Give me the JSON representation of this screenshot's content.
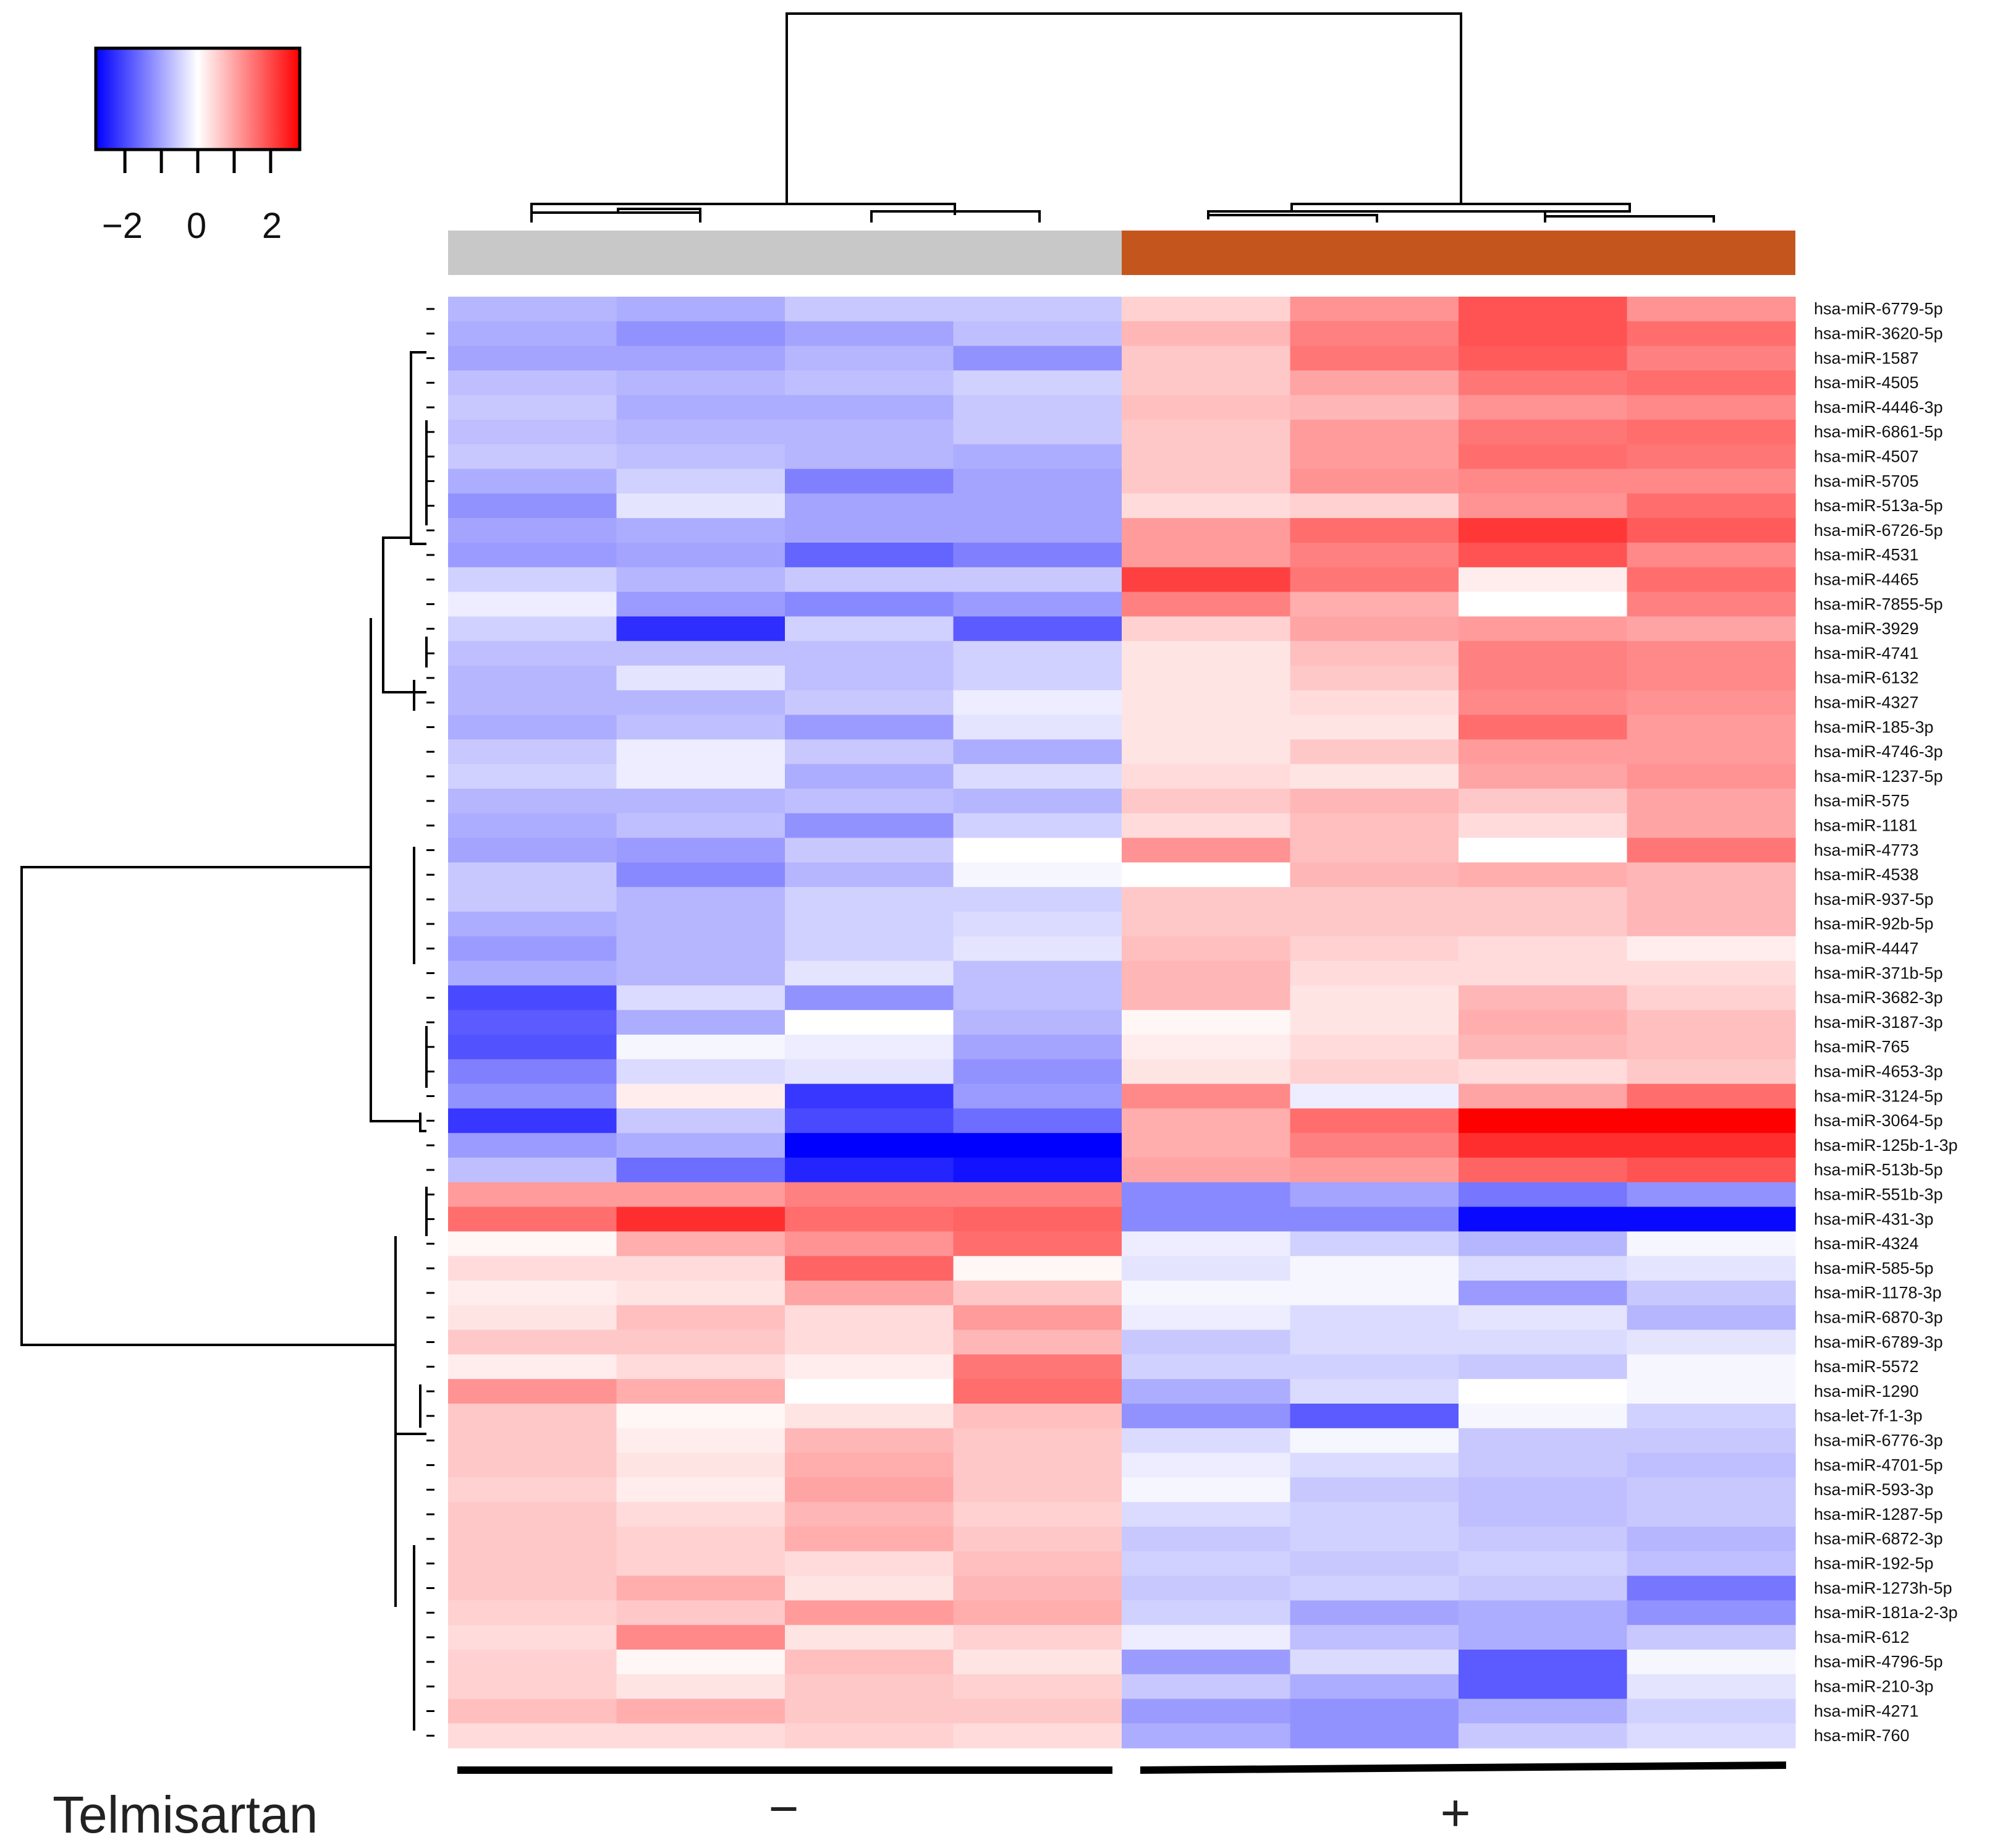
{
  "chart_data": {
    "type": "heatmap",
    "color_scale": {
      "low": "#0000ff",
      "mid": "#ffffff",
      "high": "#ff0000",
      "range": [
        -2.8,
        2.8
      ]
    },
    "colorbar": {
      "ticks": [
        -2,
        -1,
        0,
        1,
        2
      ],
      "tick_labels": [
        "−2",
        "0",
        "2"
      ]
    },
    "groups": [
      {
        "name": "−",
        "color": "#c8c8c8",
        "columns": 4
      },
      {
        "name": "+",
        "color": "#c4561d",
        "columns": 4
      }
    ],
    "treatment_label": "Telmisartan",
    "rows": [
      "hsa-miR-6779-5p",
      "hsa-miR-3620-5p",
      "hsa-miR-1587",
      "hsa-miR-4505",
      "hsa-miR-4446-3p",
      "hsa-miR-6861-5p",
      "hsa-miR-4507",
      "hsa-miR-5705",
      "hsa-miR-513a-5p",
      "hsa-miR-6726-5p",
      "hsa-miR-4531",
      "hsa-miR-4465",
      "hsa-miR-7855-5p",
      "hsa-miR-3929",
      "hsa-miR-4741",
      "hsa-miR-6132",
      "hsa-miR-4327",
      "hsa-miR-185-3p",
      "hsa-miR-4746-3p",
      "hsa-miR-1237-5p",
      "hsa-miR-575",
      "hsa-miR-1181",
      "hsa-miR-4773",
      "hsa-miR-4538",
      "hsa-miR-937-5p",
      "hsa-miR-92b-5p",
      "hsa-miR-4447",
      "hsa-miR-371b-5p",
      "hsa-miR-3682-3p",
      "hsa-miR-3187-3p",
      "hsa-miR-765",
      "hsa-miR-4653-3p",
      "hsa-miR-3124-5p",
      "hsa-miR-3064-5p",
      "hsa-miR-125b-1-3p",
      "hsa-miR-513b-5p",
      "hsa-miR-551b-3p",
      "hsa-miR-431-3p",
      "hsa-miR-4324",
      "hsa-miR-585-5p",
      "hsa-miR-1178-3p",
      "hsa-miR-6870-3p",
      "hsa-miR-6789-3p",
      "hsa-miR-5572",
      "hsa-miR-1290",
      "hsa-let-7f-1-3p",
      "hsa-miR-6776-3p",
      "hsa-miR-4701-5p",
      "hsa-miR-593-3p",
      "hsa-miR-1287-5p",
      "hsa-miR-6872-3p",
      "hsa-miR-192-5p",
      "hsa-miR-1273h-5p",
      "hsa-miR-181a-2-3p",
      "hsa-miR-612",
      "hsa-miR-4796-5p",
      "hsa-miR-210-3p",
      "hsa-miR-4271",
      "hsa-miR-760"
    ],
    "values": [
      [
        -0.8,
        -0.9,
        -0.6,
        -0.6,
        0.5,
        1.2,
        1.9,
        1.2
      ],
      [
        -0.9,
        -1.2,
        -1.0,
        -0.7,
        0.8,
        1.4,
        1.9,
        1.6
      ],
      [
        -1.0,
        -1.0,
        -0.8,
        -1.2,
        0.6,
        1.5,
        1.8,
        1.4
      ],
      [
        -0.7,
        -0.8,
        -0.7,
        -0.5,
        0.6,
        1.0,
        1.5,
        1.6
      ],
      [
        -0.6,
        -0.9,
        -0.9,
        -0.6,
        0.7,
        0.8,
        1.2,
        1.3
      ],
      [
        -0.7,
        -0.8,
        -0.8,
        -0.6,
        0.6,
        1.1,
        1.5,
        1.6
      ],
      [
        -0.6,
        -0.7,
        -0.8,
        -0.9,
        0.6,
        1.1,
        1.6,
        1.5
      ],
      [
        -0.9,
        -0.5,
        -1.4,
        -1.0,
        0.6,
        1.2,
        1.3,
        1.3
      ],
      [
        -1.2,
        -0.3,
        -1.0,
        -1.0,
        0.4,
        0.5,
        1.2,
        1.6
      ],
      [
        -1.0,
        -0.9,
        -1.0,
        -1.0,
        1.1,
        1.6,
        2.2,
        1.8
      ],
      [
        -1.1,
        -1.0,
        -1.7,
        -1.4,
        1.1,
        1.4,
        1.9,
        1.3
      ],
      [
        -0.5,
        -0.8,
        -0.6,
        -0.6,
        2.1,
        1.5,
        0.2,
        1.6
      ],
      [
        -0.2,
        -1.1,
        -1.3,
        -1.1,
        1.4,
        0.9,
        0.0,
        1.4
      ],
      [
        -0.5,
        -2.3,
        -0.5,
        -1.8,
        0.5,
        1.0,
        1.1,
        1.0
      ],
      [
        -0.7,
        -0.7,
        -0.7,
        -0.5,
        0.3,
        0.7,
        1.4,
        1.3
      ],
      [
        -0.8,
        -0.3,
        -0.7,
        -0.5,
        0.3,
        0.6,
        1.4,
        1.3
      ],
      [
        -0.8,
        -0.8,
        -0.6,
        -0.2,
        0.3,
        0.4,
        1.3,
        1.2
      ],
      [
        -0.9,
        -0.7,
        -1.1,
        -0.3,
        0.3,
        0.3,
        1.6,
        1.1
      ],
      [
        -0.6,
        -0.2,
        -0.6,
        -0.9,
        0.3,
        0.6,
        1.1,
        1.1
      ],
      [
        -0.5,
        -0.2,
        -0.9,
        -0.4,
        0.4,
        0.3,
        1.0,
        1.2
      ],
      [
        -0.8,
        -0.8,
        -0.7,
        -0.8,
        0.6,
        0.8,
        0.6,
        1.0
      ],
      [
        -0.9,
        -0.7,
        -1.2,
        -0.5,
        0.4,
        0.7,
        0.4,
        1.0
      ],
      [
        -1.0,
        -1.1,
        -0.6,
        0.0,
        1.2,
        0.7,
        0.0,
        1.5
      ],
      [
        -0.6,
        -1.3,
        -0.8,
        -0.1,
        0.0,
        0.8,
        0.9,
        0.8
      ],
      [
        -0.6,
        -0.8,
        -0.5,
        -0.5,
        0.6,
        0.6,
        0.6,
        0.8
      ],
      [
        -0.9,
        -0.8,
        -0.5,
        -0.4,
        0.6,
        0.6,
        0.6,
        0.8
      ],
      [
        -1.1,
        -0.8,
        -0.5,
        -0.3,
        0.7,
        0.5,
        0.4,
        0.2
      ],
      [
        -0.9,
        -0.8,
        -0.3,
        -0.7,
        0.8,
        0.4,
        0.4,
        0.4
      ],
      [
        -2.0,
        -0.4,
        -1.2,
        -0.7,
        0.8,
        0.3,
        0.8,
        0.5
      ],
      [
        -1.8,
        -0.9,
        0.0,
        -0.8,
        0.1,
        0.3,
        0.9,
        0.7
      ],
      [
        -1.9,
        -0.1,
        -0.2,
        -1.0,
        0.2,
        0.4,
        0.8,
        0.7
      ],
      [
        -1.4,
        -0.4,
        -0.3,
        -1.2,
        0.3,
        0.5,
        0.4,
        0.6
      ],
      [
        -1.2,
        0.2,
        -2.2,
        -1.1,
        1.3,
        -0.2,
        1.0,
        1.6
      ],
      [
        -2.2,
        -0.6,
        -2.0,
        -1.6,
        0.9,
        1.6,
        2.8,
        2.8
      ],
      [
        -1.1,
        -0.9,
        -2.8,
        -2.8,
        0.9,
        1.4,
        2.3,
        2.3
      ],
      [
        -0.7,
        -1.6,
        -2.4,
        -2.6,
        1.0,
        1.1,
        1.7,
        1.9
      ],
      [
        1.1,
        1.1,
        1.4,
        1.4,
        -1.3,
        -1.0,
        -1.5,
        -1.2
      ],
      [
        1.6,
        2.3,
        1.6,
        1.7,
        -1.3,
        -1.3,
        -2.7,
        -2.7
      ],
      [
        0.1,
        0.9,
        1.2,
        1.6,
        -0.2,
        -0.5,
        -0.8,
        -0.1
      ],
      [
        0.4,
        0.4,
        1.7,
        0.1,
        -0.3,
        -0.1,
        -0.4,
        -0.3
      ],
      [
        0.2,
        0.3,
        1.0,
        0.6,
        -0.1,
        -0.1,
        -1.1,
        -0.6
      ],
      [
        0.3,
        0.7,
        0.4,
        1.1,
        -0.2,
        -0.4,
        -0.3,
        -0.8
      ],
      [
        0.6,
        0.6,
        0.4,
        0.8,
        -0.6,
        -0.4,
        -0.4,
        -0.3
      ],
      [
        0.2,
        0.4,
        0.2,
        1.5,
        -0.5,
        -0.5,
        -0.6,
        -0.1
      ],
      [
        1.2,
        0.9,
        0.0,
        1.6,
        -0.9,
        -0.4,
        0.0,
        -0.1
      ],
      [
        0.6,
        0.1,
        0.3,
        0.7,
        -1.2,
        -1.8,
        -0.1,
        -0.5
      ],
      [
        0.6,
        0.2,
        0.8,
        0.6,
        -0.4,
        -0.1,
        -0.6,
        -0.6
      ],
      [
        0.6,
        0.3,
        0.9,
        0.6,
        -0.2,
        -0.4,
        -0.6,
        -0.7
      ],
      [
        0.5,
        0.2,
        1.0,
        0.6,
        -0.1,
        -0.6,
        -0.7,
        -0.6
      ],
      [
        0.6,
        0.4,
        0.8,
        0.5,
        -0.4,
        -0.5,
        -0.7,
        -0.6
      ],
      [
        0.6,
        0.5,
        0.9,
        0.6,
        -0.6,
        -0.5,
        -0.6,
        -0.8
      ],
      [
        0.6,
        0.5,
        0.4,
        0.7,
        -0.5,
        -0.6,
        -0.5,
        -0.7
      ],
      [
        0.6,
        0.9,
        0.3,
        0.8,
        -0.6,
        -0.5,
        -0.6,
        -1.5
      ],
      [
        0.5,
        0.6,
        1.1,
        0.9,
        -0.5,
        -1.0,
        -0.9,
        -1.2
      ],
      [
        0.4,
        1.3,
        0.3,
        0.5,
        -0.2,
        -0.7,
        -0.9,
        -0.6
      ],
      [
        0.5,
        0.1,
        0.7,
        0.3,
        -1.1,
        -0.4,
        -1.8,
        -0.1
      ],
      [
        0.5,
        0.3,
        0.6,
        0.5,
        -0.6,
        -0.9,
        -1.8,
        -0.3
      ],
      [
        0.7,
        0.9,
        0.6,
        0.6,
        -1.1,
        -1.2,
        -0.9,
        -0.5
      ],
      [
        0.4,
        0.4,
        0.5,
        0.4,
        -0.9,
        -1.2,
        -0.6,
        -0.4
      ]
    ]
  }
}
